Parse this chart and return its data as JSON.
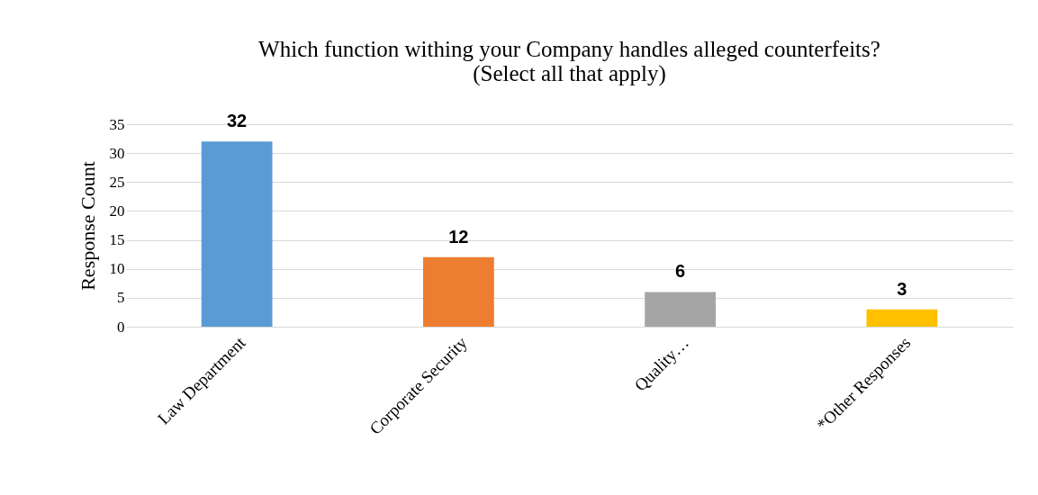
{
  "chart_data": {
    "type": "bar",
    "title": "Which function withing your Company handles alleged counterfeits?",
    "subtitle": "(Select all that apply)",
    "ylabel": "Response Count",
    "categories": [
      "Law Department",
      "Corporate Security",
      "Quality…",
      "*Other Responses"
    ],
    "values": [
      32,
      12,
      6,
      3
    ],
    "colors": [
      "#5b9bd5",
      "#ed7d31",
      "#a5a5a5",
      "#ffc000"
    ],
    "ylim": [
      0,
      35
    ],
    "yticks": [
      0,
      5,
      10,
      15,
      20,
      25,
      30,
      35
    ],
    "grid": "y",
    "data_labels": true
  }
}
